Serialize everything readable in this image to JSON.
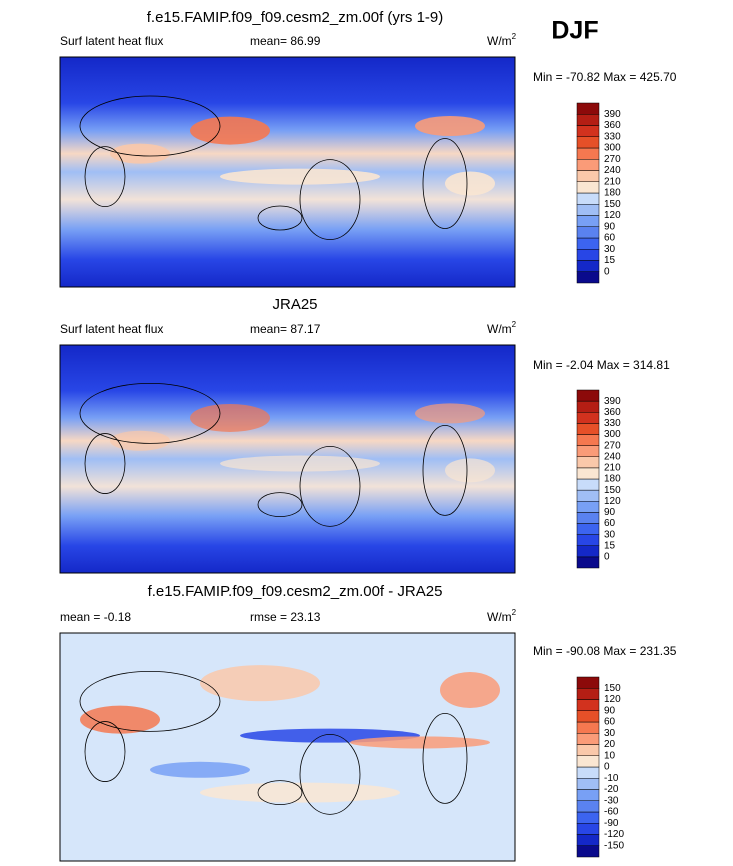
{
  "season": "DJF",
  "panels": [
    {
      "title": "f.e15.FAMIP.f09_f09.cesm2_zm.00f (yrs 1-9)",
      "left": "Surf latent heat flux",
      "center": "mean=  86.99",
      "units": "W/m",
      "units_exp": "2",
      "range": "Min = -70.82 Max = 425.70",
      "levels": [
        0,
        15,
        30,
        60,
        90,
        120,
        150,
        180,
        210,
        240,
        270,
        300,
        330,
        360,
        390
      ],
      "colors": [
        "#0a0a8c",
        "#1428c8",
        "#2846e6",
        "#3c64f0",
        "#5a82f0",
        "#78a0f5",
        "#a0bef5",
        "#c8dcfa",
        "#fae6d2",
        "#fac8aa",
        "#fa9b78",
        "#f57850",
        "#e65028",
        "#d2321e",
        "#b41e14",
        "#8c0a0a"
      ]
    },
    {
      "title": "JRA25",
      "left": "Surf latent heat flux",
      "center": "mean=  87.17",
      "units": "W/m",
      "units_exp": "2",
      "range": "Min =  -2.04 Max = 314.81",
      "levels": [
        0,
        15,
        30,
        60,
        90,
        120,
        150,
        180,
        210,
        240,
        270,
        300,
        330,
        360,
        390
      ],
      "colors": [
        "#0a0a8c",
        "#1428c8",
        "#2846e6",
        "#3c64f0",
        "#5a82f0",
        "#78a0f5",
        "#a0bef5",
        "#c8dcfa",
        "#fae6d2",
        "#fac8aa",
        "#fa9b78",
        "#f57850",
        "#e65028",
        "#d2321e",
        "#b41e14",
        "#8c0a0a"
      ]
    },
    {
      "title": "f.e15.FAMIP.f09_f09.cesm2_zm.00f - JRA25",
      "left": "mean =  -0.18",
      "center": "rmse =  23.13",
      "units": "W/m",
      "units_exp": "2",
      "range": "Min = -90.08 Max = 231.35",
      "levels": [
        -150,
        -120,
        -90,
        -60,
        -30,
        -20,
        -10,
        0,
        10,
        20,
        30,
        60,
        90,
        120,
        150
      ],
      "colors": [
        "#0a0a8c",
        "#1428c8",
        "#2846e6",
        "#3c64f0",
        "#5a82f0",
        "#78a0f5",
        "#a0bef5",
        "#c8dcfa",
        "#fae6d2",
        "#fac8aa",
        "#fa9b78",
        "#f57850",
        "#e65028",
        "#d2321e",
        "#b41e14",
        "#8c0a0a"
      ]
    }
  ]
}
